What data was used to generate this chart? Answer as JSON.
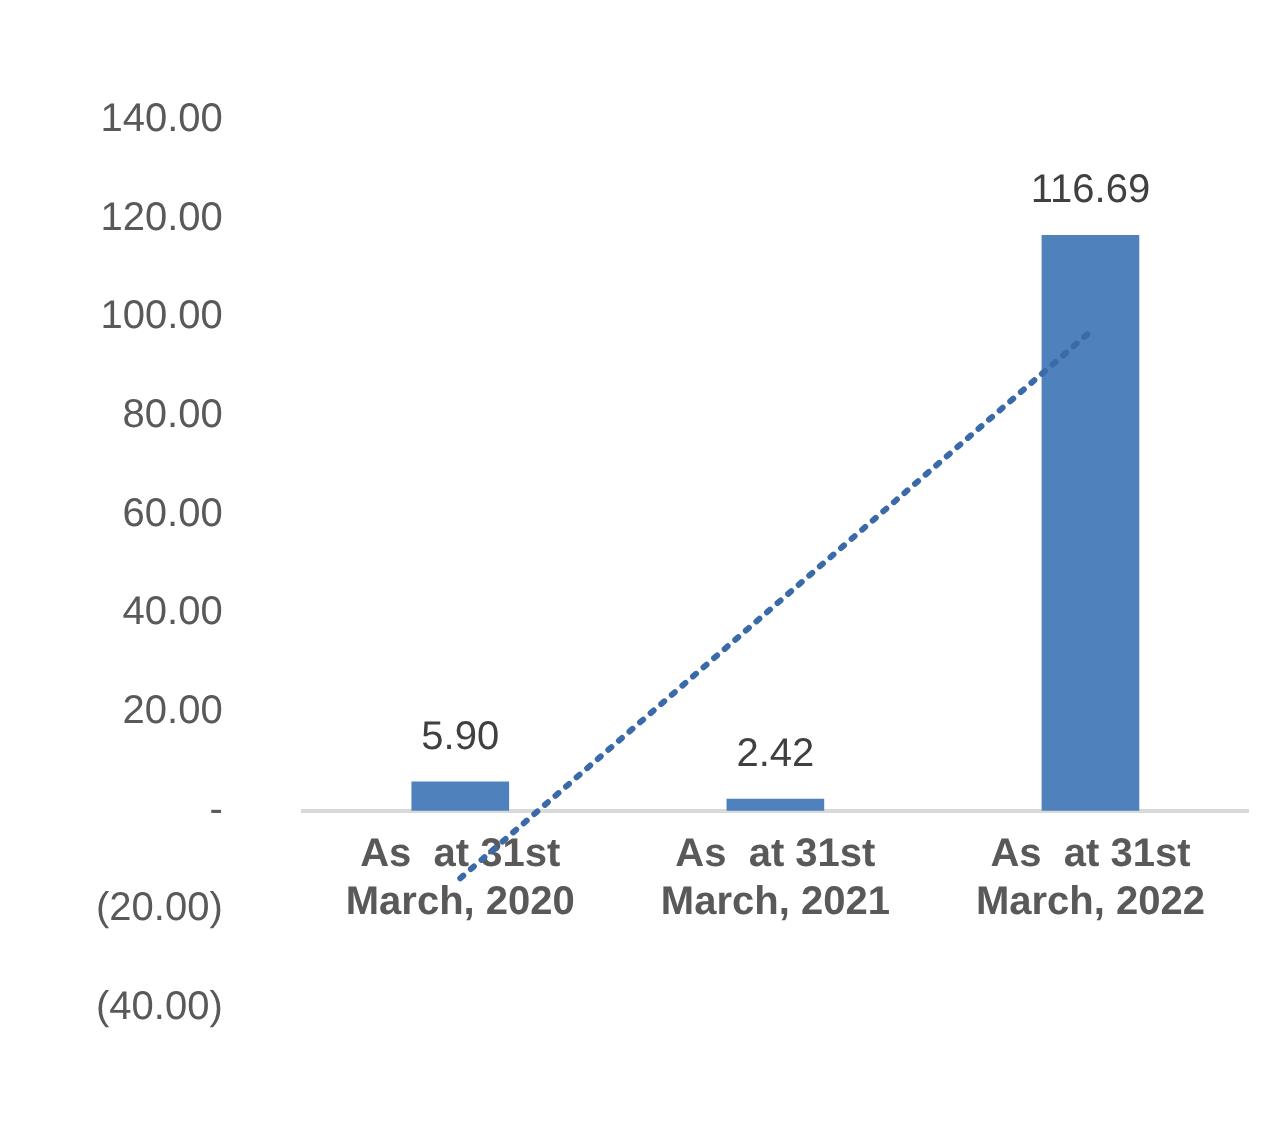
{
  "chart_data": {
    "type": "bar",
    "categories": [
      "As  at 31st\nMarch, 2020",
      "As  at 31st\nMarch, 2021",
      "As  at 31st\nMarch, 2022"
    ],
    "series": [
      {
        "color": "#4f81bd",
        "values": [
          5.9,
          2.42,
          116.69
        ],
        "value_labels": [
          "5.90",
          "2.42",
          "116.69"
        ]
      },
      {
        "type": "line",
        "color": "#3b6aa8",
        "values": [
          -13.7,
          41.7,
          97.1
        ],
        "line_style": "dotted",
        "marker": "none"
      }
    ],
    "ylim": [
      -40,
      140
    ],
    "yticks": [
      {
        "value": -40,
        "label": "(40.00)"
      },
      {
        "value": -20,
        "label": "(20.00)"
      },
      {
        "value": 0,
        "label": "-"
      },
      {
        "value": 20,
        "label": "20.00"
      },
      {
        "value": 40,
        "label": "40.00"
      },
      {
        "value": 60,
        "label": "60.00"
      },
      {
        "value": 80,
        "label": "80.00"
      },
      {
        "value": 100,
        "label": "100.00"
      },
      {
        "value": 120,
        "label": "120.00"
      },
      {
        "value": 140,
        "label": "140.00"
      }
    ],
    "grid": false,
    "legend": false
  }
}
